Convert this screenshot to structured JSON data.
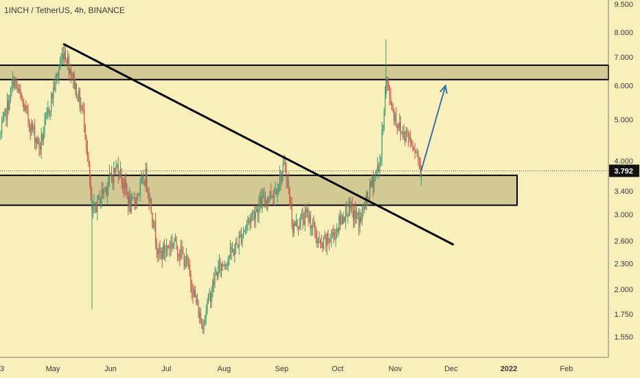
{
  "chart_data": {
    "type": "candlestick",
    "title": "1INCH / TetherUS, 4h, BINANCE",
    "last_price": "3.792",
    "x_ticks": [
      "3",
      "May",
      "Jun",
      "Jul",
      "Aug",
      "Sep",
      "Oct",
      "Nov",
      "Dec",
      "2022",
      "Feb"
    ],
    "y_ticks": [
      "9.500",
      "8.000",
      "7.000",
      "6.000",
      "5.000",
      "4.000",
      "3.400",
      "3.000",
      "2.600",
      "2.300",
      "2.000",
      "1.750",
      "1.550"
    ],
    "y_scale": "log",
    "ylim": [
      1.4,
      9.5
    ],
    "colors": {
      "background": "#f8efba",
      "up": "#2e9e72",
      "down": "#cf4d47",
      "zone_fill": "#d2c995",
      "trendline": "#000000",
      "projection": "#3570a8",
      "axis_text": "#3a3a3a"
    },
    "series": [
      {
        "date": "2021-04-03",
        "close": 4.6
      },
      {
        "date": "2021-04-10",
        "close": 6.2
      },
      {
        "date": "2021-04-17",
        "close": 5.1
      },
      {
        "date": "2021-04-24",
        "close": 4.3
      },
      {
        "date": "2021-05-01",
        "close": 5.8
      },
      {
        "date": "2021-05-07",
        "close": 7.3
      },
      {
        "date": "2021-05-13",
        "close": 6.0
      },
      {
        "date": "2021-05-18",
        "close": 5.0
      },
      {
        "date": "2021-05-22",
        "close": 3.0
      },
      {
        "date": "2021-05-28",
        "close": 3.4
      },
      {
        "date": "2021-06-05",
        "close": 3.9
      },
      {
        "date": "2021-06-12",
        "close": 3.1
      },
      {
        "date": "2021-06-20",
        "close": 3.7
      },
      {
        "date": "2021-06-27",
        "close": 2.4
      },
      {
        "date": "2021-07-05",
        "close": 2.6
      },
      {
        "date": "2021-07-12",
        "close": 2.3
      },
      {
        "date": "2021-07-20",
        "close": 1.65
      },
      {
        "date": "2021-07-28",
        "close": 2.2
      },
      {
        "date": "2021-08-07",
        "close": 2.5
      },
      {
        "date": "2021-08-14",
        "close": 2.9
      },
      {
        "date": "2021-08-21",
        "close": 3.2
      },
      {
        "date": "2021-08-28",
        "close": 3.4
      },
      {
        "date": "2021-09-03",
        "close": 3.9
      },
      {
        "date": "2021-09-07",
        "close": 2.8
      },
      {
        "date": "2021-09-15",
        "close": 3.0
      },
      {
        "date": "2021-09-22",
        "close": 2.5
      },
      {
        "date": "2021-09-29",
        "close": 2.7
      },
      {
        "date": "2021-10-06",
        "close": 3.1
      },
      {
        "date": "2021-10-13",
        "close": 2.9
      },
      {
        "date": "2021-10-20",
        "close": 3.6
      },
      {
        "date": "2021-10-24",
        "close": 4.0
      },
      {
        "date": "2021-10-27",
        "close": 6.2
      },
      {
        "date": "2021-10-31",
        "close": 5.2
      },
      {
        "date": "2021-11-04",
        "close": 4.7
      },
      {
        "date": "2021-11-08",
        "close": 4.6
      },
      {
        "date": "2021-11-12",
        "close": 4.3
      },
      {
        "date": "2021-11-15",
        "close": 3.8
      }
    ],
    "trendline": {
      "from": {
        "date": "2021-05-07",
        "price": 7.5
      },
      "to": {
        "date": "2021-12-02",
        "price": 2.55
      }
    },
    "zones": [
      {
        "from_price": 6.2,
        "to_price": 6.7
      },
      {
        "from_price": 3.15,
        "to_price": 3.7
      }
    ],
    "projection": {
      "from": {
        "date": "2021-11-15",
        "price": 3.8
      },
      "to": {
        "date": "2021-11-28",
        "price": 6.0
      }
    }
  }
}
